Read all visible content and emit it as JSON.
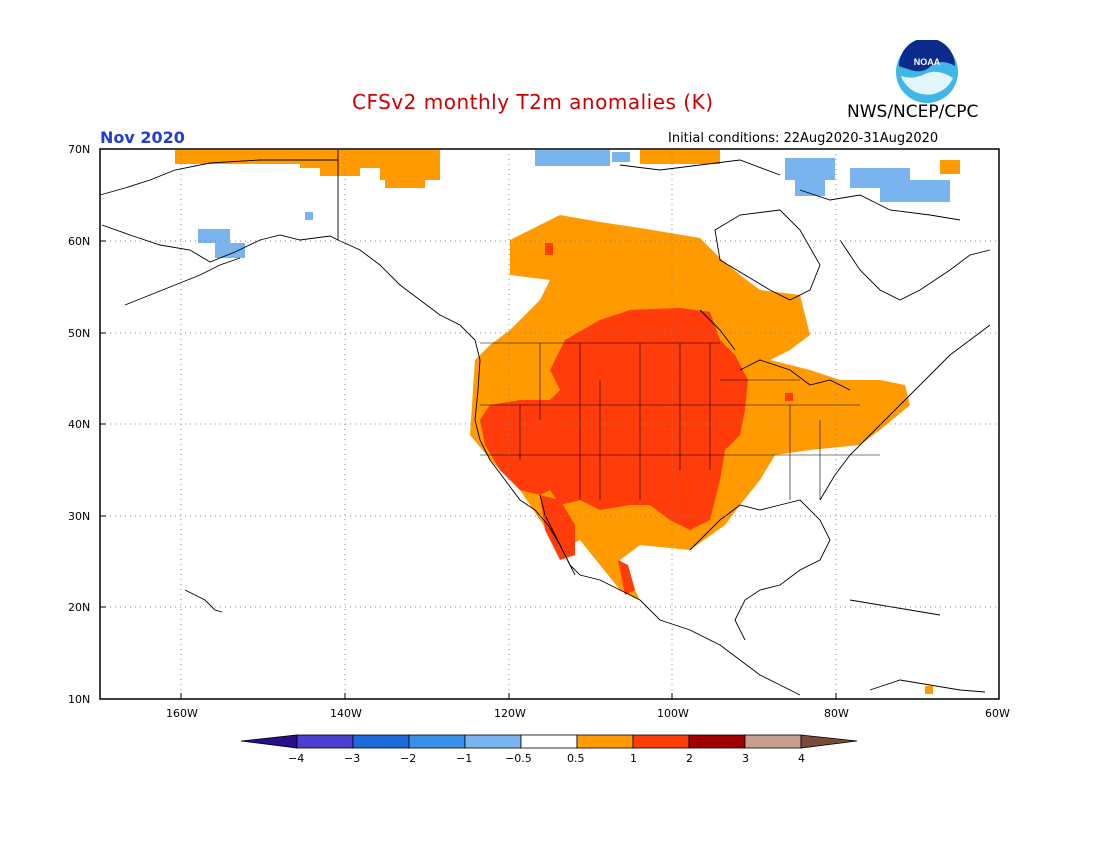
{
  "header": {
    "title": "CFSv2 monthly T2m anomalies (K)",
    "agency": "NWS/NCEP/CPC",
    "month": "Nov 2020",
    "initial_conditions": "Initial conditions: 22Aug2020-31Aug2020",
    "logo_text": "NOAA"
  },
  "colors": {
    "title": "#cc0000",
    "month": "#1f3fd6",
    "neg4": "#2a0f8a",
    "neg3": "#4b3fcf",
    "neg2": "#1e6ad8",
    "neg1": "#3a8fe8",
    "neg05": "#7ab4ee",
    "zero": "#ffffff",
    "pos05": "#ff9a00",
    "pos1": "#ff3c0a",
    "pos2": "#a00000",
    "pos3": "#c8a090",
    "pos4": "#7a4a3a"
  },
  "axes": {
    "lat_labels": [
      "70N",
      "60N",
      "50N",
      "40N",
      "30N",
      "20N",
      "10N"
    ],
    "lon_labels": [
      "160W",
      "140W",
      "120W",
      "100W",
      "80W",
      "60W"
    ]
  },
  "colorbar": {
    "labels": [
      "−4",
      "−3",
      "−2",
      "−1",
      "−0.5",
      "0.5",
      "1",
      "2",
      "3",
      "4"
    ]
  }
}
